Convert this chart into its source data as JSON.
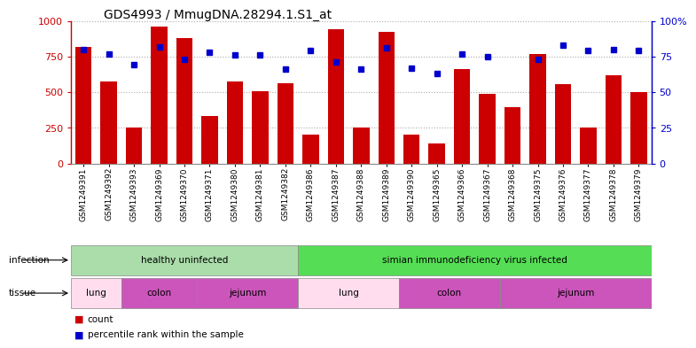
{
  "title": "GDS4993 / MmugDNA.28294.1.S1_at",
  "samples": [
    "GSM1249391",
    "GSM1249392",
    "GSM1249393",
    "GSM1249369",
    "GSM1249370",
    "GSM1249371",
    "GSM1249380",
    "GSM1249381",
    "GSM1249382",
    "GSM1249386",
    "GSM1249387",
    "GSM1249388",
    "GSM1249389",
    "GSM1249390",
    "GSM1249365",
    "GSM1249366",
    "GSM1249367",
    "GSM1249368",
    "GSM1249375",
    "GSM1249376",
    "GSM1249377",
    "GSM1249378",
    "GSM1249379"
  ],
  "counts": [
    820,
    575,
    250,
    960,
    880,
    335,
    575,
    505,
    560,
    200,
    940,
    255,
    920,
    205,
    140,
    660,
    490,
    395,
    770,
    555,
    255,
    620,
    500
  ],
  "percentiles": [
    80,
    77,
    69,
    82,
    73,
    78,
    76,
    76,
    66,
    79,
    71,
    66,
    81,
    67,
    63,
    77,
    75,
    null,
    73,
    83,
    79,
    80,
    79
  ],
  "bar_color": "#cc0000",
  "dot_color": "#0000cc",
  "ylim_left": [
    0,
    1000
  ],
  "ylim_right": [
    0,
    100
  ],
  "yticks_left": [
    0,
    250,
    500,
    750,
    1000
  ],
  "yticks_right": [
    0,
    25,
    50,
    75,
    100
  ],
  "infection_groups": [
    {
      "label": "healthy uninfected",
      "start": 0,
      "end": 8,
      "color": "#aaddaa"
    },
    {
      "label": "simian immunodeficiency virus infected",
      "start": 9,
      "end": 22,
      "color": "#55dd55"
    }
  ],
  "tissue_groups": [
    {
      "label": "lung",
      "start": 0,
      "end": 1,
      "color": "#ffddee"
    },
    {
      "label": "colon",
      "start": 2,
      "end": 4,
      "color": "#cc55bb"
    },
    {
      "label": "jejunum",
      "start": 5,
      "end": 8,
      "color": "#cc55bb"
    },
    {
      "label": "lung",
      "start": 9,
      "end": 12,
      "color": "#ffddee"
    },
    {
      "label": "colon",
      "start": 13,
      "end": 16,
      "color": "#cc55bb"
    },
    {
      "label": "jejunum",
      "start": 17,
      "end": 22,
      "color": "#cc55bb"
    }
  ],
  "background_color": "#ffffff",
  "grid_color": "#aaaaaa"
}
